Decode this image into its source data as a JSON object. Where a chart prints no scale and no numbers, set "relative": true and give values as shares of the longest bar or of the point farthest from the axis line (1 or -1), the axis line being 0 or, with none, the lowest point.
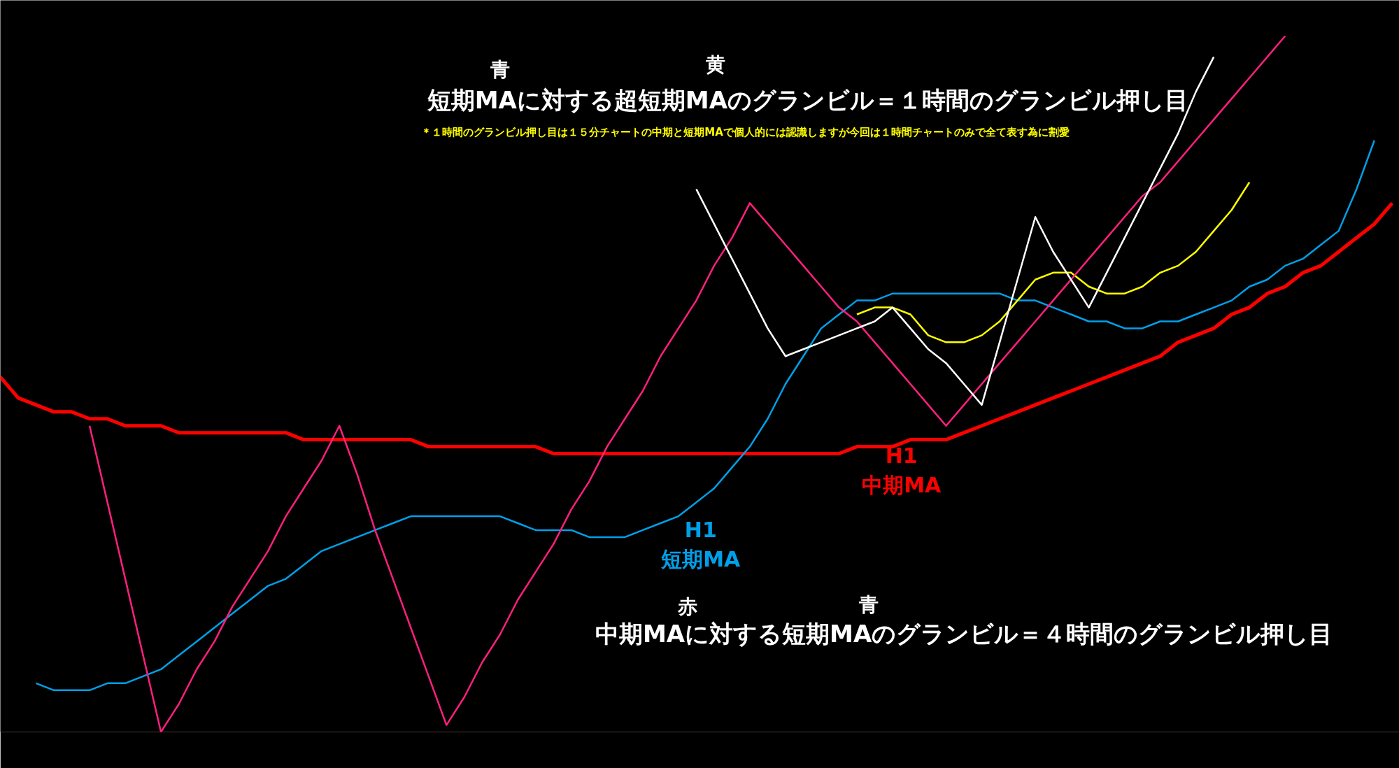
{
  "chart_data": {
    "type": "line",
    "relative": true,
    "title": "短期MAに対する超短期MAのグランビル＝１時間のグランビル押し目",
    "annotations": [
      "青",
      "黄",
      "＊１時間のグランビル押し目は１５分チャートの中期と短期MAで個人的には認識しますが今回は１時間チャートのみで全て表す為に割愛",
      "赤",
      "青",
      "中期MAに対する短期MAのグランビル＝４時間のグランビル押し目"
    ],
    "categories": [
      null,
      null,
      null,
      null,
      null,
      null,
      null,
      null,
      null,
      null,
      null,
      null,
      null,
      null,
      null,
      null,
      null,
      null,
      null,
      null,
      null,
      null,
      null,
      null,
      null,
      null,
      null,
      null,
      null,
      null,
      null,
      null,
      null,
      null,
      null,
      null,
      null,
      null,
      null,
      null,
      null,
      null,
      null,
      null,
      null,
      null,
      null,
      null,
      null,
      null,
      null,
      null,
      null,
      null,
      null,
      null,
      null,
      null,
      null,
      null,
      null,
      null,
      null,
      null,
      null,
      null,
      null,
      null,
      null,
      null,
      null,
      null,
      null,
      null,
      null,
      null,
      null,
      null,
      null
    ],
    "series": [
      {
        "name": "H1\n中期MA",
        "color": "#ff0000",
        "values": [
          0.51,
          0.48,
          0.47,
          0.46,
          0.46,
          0.45,
          0.45,
          0.44,
          0.44,
          0.44,
          0.43,
          0.43,
          0.43,
          0.43,
          0.43,
          0.43,
          0.43,
          0.42,
          0.42,
          0.42,
          0.42,
          0.42,
          0.42,
          0.42,
          0.41,
          0.41,
          0.41,
          0.41,
          0.41,
          0.41,
          0.41,
          0.4,
          0.4,
          0.4,
          0.4,
          0.4,
          0.4,
          0.4,
          0.4,
          0.4,
          0.4,
          0.4,
          0.4,
          0.4,
          0.4,
          0.4,
          0.4,
          0.4,
          0.41,
          0.41,
          0.41,
          0.42,
          0.42,
          0.42,
          0.43,
          0.44,
          0.45,
          0.46,
          0.47,
          0.48,
          0.49,
          0.5,
          0.51,
          0.52,
          0.53,
          0.54,
          0.56,
          0.57,
          0.58,
          0.6,
          0.61,
          0.63,
          0.64,
          0.66,
          0.67,
          0.69,
          0.71,
          0.73,
          0.76
        ]
      },
      {
        "name": "H1\n短期MA",
        "color": "#00a0e9",
        "values": [
          null,
          null,
          0.07,
          0.06,
          0.06,
          0.06,
          0.07,
          0.07,
          0.08,
          0.09,
          0.11,
          0.13,
          0.15,
          0.17,
          0.19,
          0.21,
          0.22,
          0.24,
          0.26,
          0.27,
          0.28,
          0.29,
          0.3,
          0.31,
          0.31,
          0.31,
          0.31,
          0.31,
          0.31,
          0.3,
          0.29,
          0.29,
          0.29,
          0.28,
          0.28,
          0.28,
          0.29,
          0.3,
          0.31,
          0.33,
          0.35,
          0.38,
          0.41,
          0.45,
          0.5,
          0.54,
          0.58,
          0.6,
          0.62,
          0.62,
          0.63,
          0.63,
          0.63,
          0.63,
          0.63,
          0.63,
          0.63,
          0.62,
          0.62,
          0.61,
          0.6,
          0.59,
          0.59,
          0.58,
          0.58,
          0.59,
          0.59,
          0.6,
          0.61,
          0.62,
          0.64,
          0.65,
          0.67,
          0.68,
          0.7,
          0.72,
          0.78,
          0.85,
          null
        ]
      },
      {
        "color": "#ffff00",
        "values": [
          null,
          null,
          null,
          null,
          null,
          null,
          null,
          null,
          null,
          null,
          null,
          null,
          null,
          null,
          null,
          null,
          null,
          null,
          null,
          null,
          null,
          null,
          null,
          null,
          null,
          null,
          null,
          null,
          null,
          null,
          null,
          null,
          null,
          null,
          null,
          null,
          null,
          null,
          null,
          null,
          null,
          null,
          null,
          null,
          null,
          null,
          null,
          null,
          0.6,
          0.61,
          0.61,
          0.6,
          0.57,
          0.56,
          0.56,
          0.57,
          0.59,
          0.62,
          0.65,
          0.66,
          0.66,
          0.64,
          0.63,
          0.63,
          0.64,
          0.66,
          0.67,
          0.69,
          0.72,
          0.75,
          0.79,
          null,
          null,
          null,
          null,
          null,
          null,
          null,
          null
        ]
      },
      {
        "color": "#ff1f7d",
        "values": [
          null,
          null,
          null,
          null,
          null,
          0.44,
          0.33,
          0.22,
          0.11,
          0,
          0.04,
          0.09,
          0.13,
          0.18,
          0.22,
          0.26,
          0.31,
          0.35,
          0.39,
          0.44,
          0.37,
          0.29,
          0.22,
          0.15,
          0.08,
          0.01,
          0.05,
          0.1,
          0.14,
          0.19,
          0.23,
          0.27,
          0.32,
          0.36,
          0.41,
          0.45,
          0.49,
          0.54,
          0.58,
          0.62,
          0.67,
          0.71,
          0.76,
          0.73,
          0.7,
          0.67,
          0.64,
          0.61,
          0.59,
          0.56,
          0.53,
          0.5,
          0.47,
          0.44,
          0.47,
          0.5,
          0.53,
          0.56,
          0.59,
          0.62,
          0.65,
          0.68,
          0.71,
          0.74,
          0.77,
          0.79,
          0.82,
          0.85,
          0.88,
          0.91,
          0.94,
          0.97,
          1,
          null,
          null,
          null,
          null,
          null,
          null
        ]
      },
      {
        "color": "#ffffff",
        "values": [
          null,
          null,
          null,
          null,
          null,
          null,
          null,
          null,
          null,
          null,
          null,
          null,
          null,
          null,
          null,
          null,
          null,
          null,
          null,
          null,
          null,
          null,
          null,
          null,
          null,
          null,
          null,
          null,
          null,
          null,
          null,
          null,
          null,
          null,
          null,
          null,
          null,
          null,
          null,
          0.78,
          0.73,
          0.68,
          0.63,
          0.58,
          0.54,
          0.55,
          0.56,
          0.57,
          0.58,
          0.59,
          0.61,
          0.58,
          0.55,
          0.53,
          0.5,
          0.47,
          0.56,
          0.65,
          0.74,
          0.69,
          0.65,
          0.61,
          0.66,
          0.71,
          0.76,
          0.81,
          0.86,
          0.92,
          0.97,
          null,
          null,
          null,
          null,
          null,
          null,
          null,
          null,
          null,
          null
        ]
      }
    ]
  }
}
